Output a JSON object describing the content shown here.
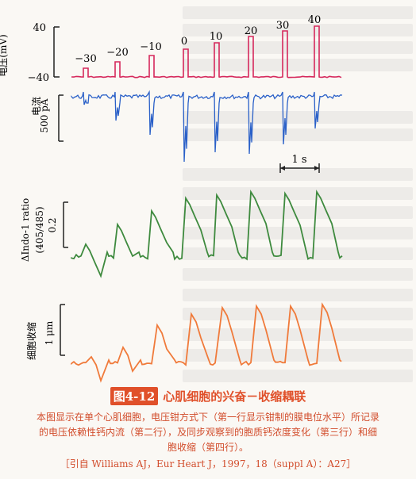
{
  "panels": {
    "voltage": {
      "ylabel": "电压(mV)",
      "ticks": [
        "40",
        "−40"
      ],
      "steps": [
        "−30",
        "−20",
        "−10",
        "0",
        "10",
        "20",
        "30",
        "40"
      ],
      "color": "#d6285c"
    },
    "current": {
      "ylabel": "电流",
      "scale_label": "500 pA",
      "color": "#2a60c8",
      "time_scale": "1 s"
    },
    "calcium": {
      "ylabel": "ΔIndo-1 ratio",
      "ylabel2": "(405/485)",
      "scale_label": "0.2",
      "color": "#3e8a3e"
    },
    "shortening": {
      "ylabel": "细胞收缩",
      "scale_label": "1 μm",
      "color": "#f07a3a"
    }
  },
  "caption": {
    "figure_number": "图4-12",
    "title": "心肌细胞的兴奋－收缩耦联",
    "text": "本图显示在单个心肌细胞，电压钳方式下（第一行显示钳制的膜电位水平）所记录的电压依赖性钙内流（第二行），及同步观察到的胞质钙浓度变化（第三行）和细胞收缩（第四行）。",
    "reference": "［引自 Williams AJ，Eur Heart J，1997，18（suppl A）：A27］"
  }
}
